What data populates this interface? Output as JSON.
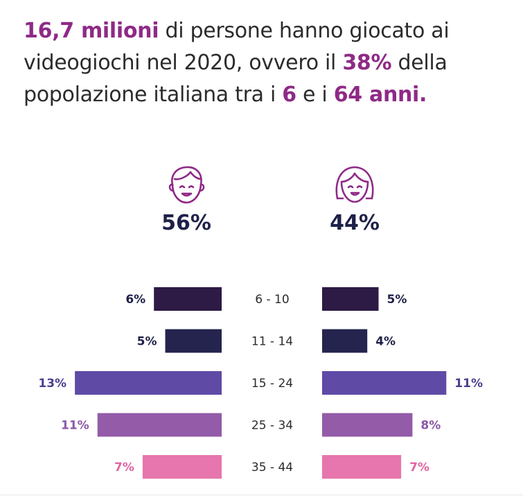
{
  "headline": {
    "p1": "16,7 milioni",
    "p2": " di persone hanno giocato ai videogiochi nel 2020, ovvero il ",
    "p3": "38%",
    "p4": " della popolazione italiana tra i ",
    "p5": "6",
    "p6": " e i ",
    "p7": "64 anni.",
    "highlight_color": "#8e2a86"
  },
  "male": {
    "icon": "boy-face-icon",
    "percent": "56%"
  },
  "female": {
    "icon": "girl-face-icon",
    "percent": "44%"
  },
  "chart_data": {
    "type": "bar",
    "orientation": "horizontal-butterfly",
    "categories": [
      "6 - 10",
      "11 - 14",
      "15 - 24",
      "25 - 34",
      "35 - 44"
    ],
    "series": [
      {
        "side": "left",
        "values": [
          6,
          5,
          13,
          11,
          7
        ],
        "labels": [
          "6%",
          "5%",
          "13%",
          "11%",
          "7%"
        ]
      },
      {
        "side": "right",
        "values": [
          5,
          4,
          11,
          8,
          7
        ],
        "labels": [
          "5%",
          "4%",
          "11%",
          "8%",
          "7%"
        ]
      }
    ],
    "colors": [
      "#2d1a45",
      "#25244f",
      "#5f4aa6",
      "#935ba8",
      "#e676ad"
    ],
    "label_colors": [
      "#1e2148",
      "#1e2148",
      "#4b3f8f",
      "#8a57a5",
      "#e064a2"
    ]
  }
}
